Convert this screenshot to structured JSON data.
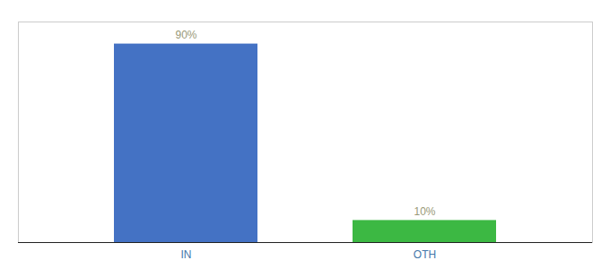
{
  "chart_data": {
    "type": "bar",
    "categories": [
      "IN",
      "OTH"
    ],
    "values": [
      90,
      10
    ],
    "value_labels": [
      "90%",
      "10%"
    ],
    "colors": [
      "#4472c4",
      "#3cb843"
    ],
    "ylim": [
      0,
      100
    ],
    "data_labels": true,
    "tick_labels": "x"
  }
}
